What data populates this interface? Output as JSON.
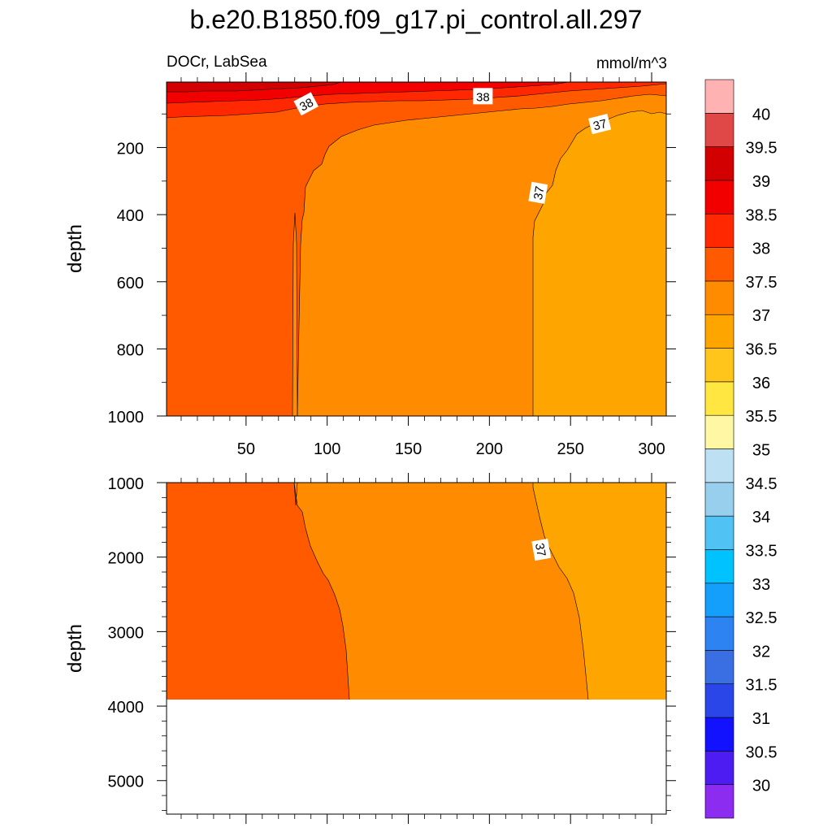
{
  "chart_data": [
    {
      "type": "filled-contour",
      "title": "b.e20.B1850.f09_g17.pi_control.all.297",
      "left_subtitle": "DOCr, LabSea",
      "right_subtitle": "mmol/m^3",
      "ylabel": "depth",
      "xlim": [
        1,
        309
      ],
      "ylim": [
        1000,
        5
      ],
      "xticks": [
        50,
        100,
        150,
        200,
        250,
        300
      ],
      "yticks": [
        200,
        400,
        600,
        800,
        1000
      ],
      "contour_labels": [
        {
          "text": "38",
          "x": 87,
          "y": 70
        },
        {
          "text": "38",
          "x": 196,
          "y": 47
        },
        {
          "text": "37",
          "x": 268,
          "y": 130
        },
        {
          "text": "37",
          "x": 230,
          "y": 335
        }
      ]
    },
    {
      "type": "filled-contour",
      "ylabel": "depth",
      "xlim": [
        1,
        309
      ],
      "ylim": [
        5450,
        1000
      ],
      "yticks": [
        1000,
        2000,
        3000,
        4000,
        5000
      ],
      "ocean_bottom_depth": 3860,
      "contour_labels": [
        {
          "text": "37",
          "x": 232,
          "y": 1900
        }
      ]
    }
  ],
  "colorbar": {
    "levels": [
      "30",
      "30.5",
      "31",
      "31.5",
      "32",
      "32.5",
      "33",
      "33.5",
      "34",
      "34.5",
      "35",
      "35.5",
      "36",
      "36.5",
      "37",
      "37.5",
      "38",
      "38.5",
      "39",
      "39.5",
      "40"
    ],
    "colors": [
      "#8c2cf0",
      "#4c1cf3",
      "#1212ff",
      "#2a46e8",
      "#3a6fe4",
      "#2d83f2",
      "#149ffc",
      "#00c2ff",
      "#50c2f4",
      "#97cfec",
      "#bde0f2",
      "#fff7a3",
      "#ffe640",
      "#ffc51a",
      "#ffa500",
      "#ff8b00",
      "#ff5a00",
      "#ff2800",
      "#f20000",
      "#d20000",
      "#e04848",
      "#ffb2b2"
    ]
  }
}
